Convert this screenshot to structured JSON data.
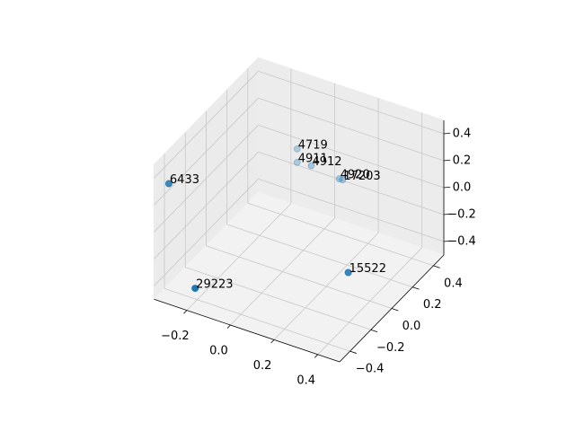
{
  "chart_data": {
    "type": "scatter3d",
    "x": [
      -0.33,
      -0.2,
      0.32,
      0.17,
      0.16,
      0.0,
      0.0,
      0.06
    ],
    "y": [
      -0.4,
      -0.42,
      -0.04,
      0.22,
      0.21,
      0.14,
      0.14,
      0.15
    ],
    "z": [
      0.29,
      -0.4,
      -0.3,
      0.1,
      0.11,
      0.3,
      0.2,
      0.2
    ],
    "point_labels": [
      "6433",
      "29223",
      "15522",
      "17203",
      "4920",
      "4719",
      "4911",
      "4912"
    ],
    "color": "#1f77b4",
    "xlim": [
      -0.35,
      0.5
    ],
    "ylim": [
      -0.5,
      0.5
    ],
    "zlim": [
      -0.5,
      0.5
    ],
    "xticks": [
      {
        "value": -0.2,
        "label": "−0.2"
      },
      {
        "value": 0,
        "label": "0.0"
      },
      0.2,
      0.4
    ],
    "yticks": [
      {
        "value": -0.4,
        "label": "−0.4"
      },
      {
        "value": -0.2,
        "label": "−0.2"
      },
      {
        "value": 0,
        "label": "0.0"
      },
      0.2,
      0.4
    ],
    "zticks": [
      {
        "value": -0.4,
        "label": "−0.4"
      },
      {
        "value": -0.2,
        "label": "−0.2"
      },
      {
        "value": 0,
        "label": "0.0"
      },
      0.2,
      0.4
    ],
    "grid": true
  }
}
